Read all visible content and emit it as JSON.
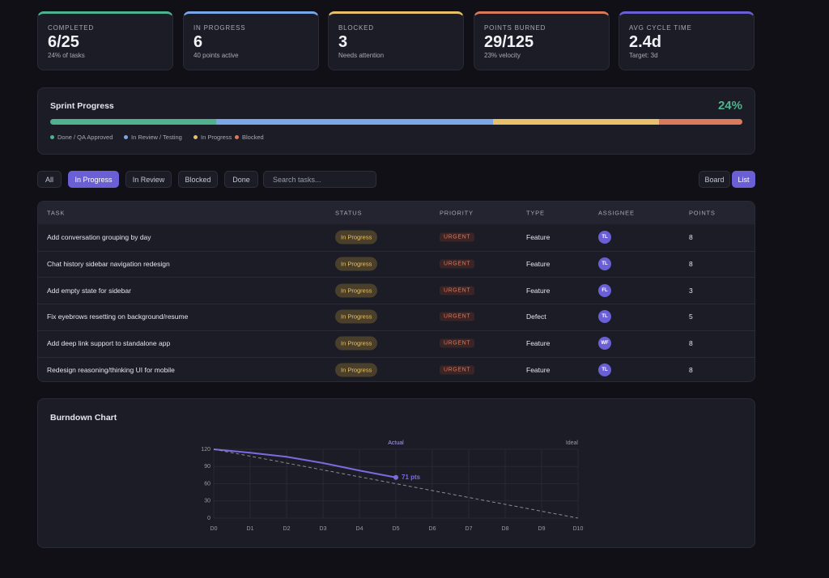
{
  "stats": [
    {
      "label": "COMPLETED",
      "value": "6/25",
      "sub": "24% of tasks",
      "color": "#4fb28f"
    },
    {
      "label": "IN PROGRESS",
      "value": "6",
      "sub": "40 points active",
      "color": "#7aa7e8"
    },
    {
      "label": "BLOCKED",
      "value": "3",
      "sub": "Needs attention",
      "color": "#e8c06a"
    },
    {
      "label": "POINTS BURNED",
      "value": "29/125",
      "sub": "23% velocity",
      "color": "#d97a5c"
    },
    {
      "label": "AVG CYCLE TIME",
      "value": "2.4d",
      "sub": "Target: 3d",
      "color": "#6b5fd6"
    }
  ],
  "sprint": {
    "title": "Sprint Progress",
    "percent": "24%",
    "segments": [
      {
        "name": "Done / QA Approved",
        "color": "#4fb28f",
        "value": 24
      },
      {
        "name": "In Review / Testing",
        "color": "#7aa7e8",
        "value": 40
      },
      {
        "name": "In Progress",
        "color": "#e8c06a",
        "value": 24
      },
      {
        "name": "Blocked",
        "color": "#d97a5c",
        "value": 12
      }
    ]
  },
  "filters": {
    "items": [
      "All",
      "In Progress",
      "In Review",
      "Blocked",
      "Done"
    ],
    "active": 1,
    "search": "Search tasks..."
  },
  "views": {
    "items": [
      "Board",
      "List"
    ],
    "active": 1
  },
  "table": {
    "columns": [
      "TASK",
      "STATUS",
      "PRIORITY",
      "TYPE",
      "ASSIGNEE",
      "POINTS"
    ],
    "rows": [
      [
        "Add conversation grouping by day",
        "In Progress",
        "URGENT",
        "Feature",
        "TL",
        "8"
      ],
      [
        "Chat history sidebar navigation redesign",
        "In Progress",
        "URGENT",
        "Feature",
        "TL",
        "8"
      ],
      [
        "Add empty state for sidebar",
        "In Progress",
        "URGENT",
        "Feature",
        "FL",
        "3"
      ],
      [
        "Fix eyebrows resetting on background/resume",
        "In Progress",
        "URGENT",
        "Defect",
        "TL",
        "5"
      ],
      [
        "Add deep link support to standalone app",
        "In Progress",
        "URGENT",
        "Feature",
        "WF",
        "8"
      ],
      [
        "Redesign reasoning/thinking UI for mobile",
        "In Progress",
        "URGENT",
        "Feature",
        "TL",
        "8"
      ]
    ]
  },
  "chart_data": {
    "type": "line",
    "title": "Burndown Chart",
    "categories": [
      "D0",
      "D1",
      "D2",
      "D3",
      "D4",
      "D5",
      "D6",
      "D7",
      "D8",
      "D9",
      "D10"
    ],
    "series": [
      {
        "name": "Actual",
        "color": "#7b6be0",
        "values": [
          120,
          114,
          107,
          96,
          83,
          71,
          null,
          null,
          null,
          null,
          null
        ],
        "value_labels": [
          null,
          null,
          null,
          null,
          null,
          "71 pts",
          null,
          null,
          null,
          null,
          null
        ]
      },
      {
        "name": "Ideal",
        "color": "#8a8b96",
        "dashed": true,
        "values": [
          120,
          108,
          96,
          84,
          72,
          60,
          48,
          36,
          24,
          12,
          0
        ]
      }
    ],
    "ylim": [
      0,
      120
    ],
    "yticks": [
      0,
      30,
      60,
      90,
      120
    ],
    "grid": true
  }
}
